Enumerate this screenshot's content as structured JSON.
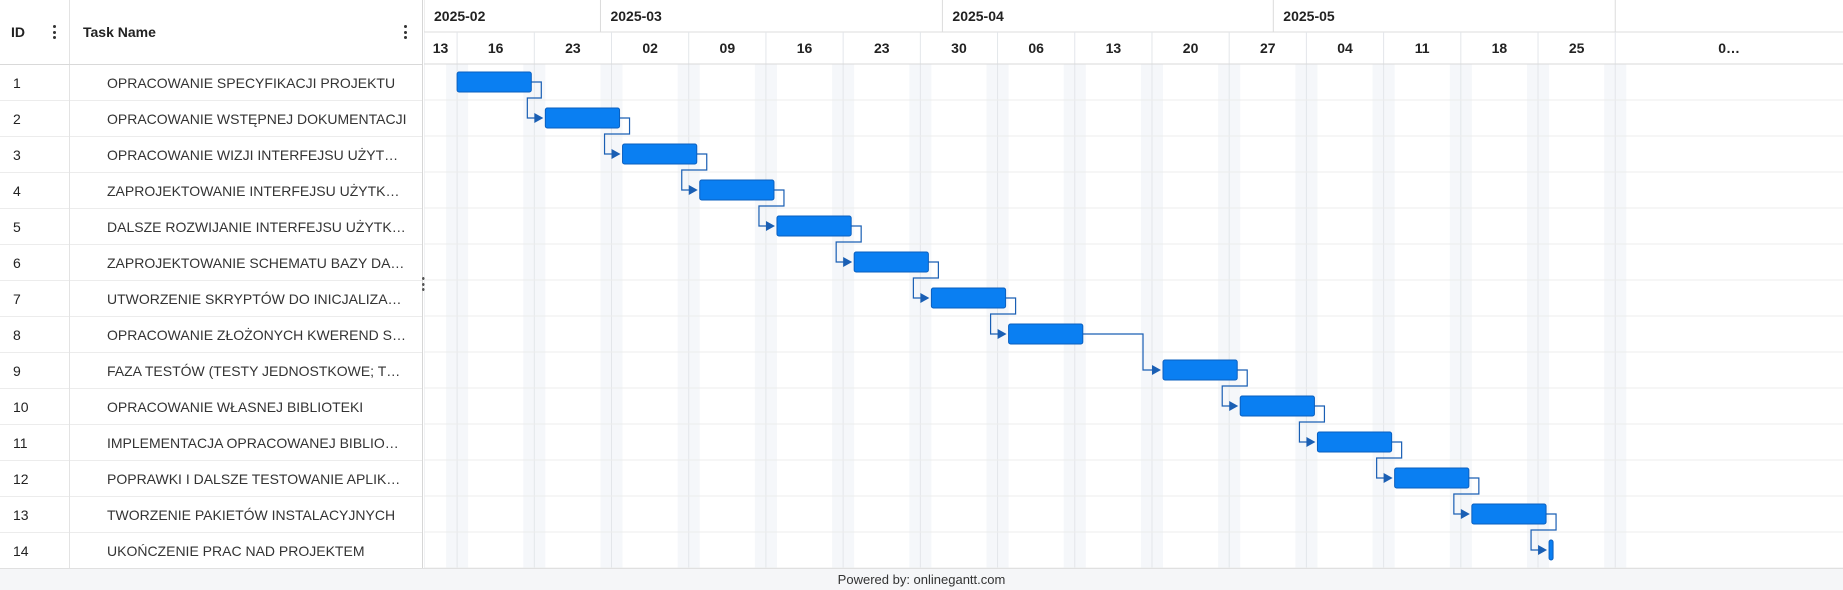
{
  "grid": {
    "columns": {
      "id": "ID",
      "name": "Task Name"
    }
  },
  "tasks": [
    {
      "id": "1",
      "name": "OPRACOWANIE SPECYFIKACJI PROJEKTU",
      "start": "2025-02-16",
      "end": "2025-02-22"
    },
    {
      "id": "2",
      "name": "OPRACOWANIE WSTĘPNEJ DOKUMENTACJI",
      "start": "2025-02-24",
      "end": "2025-03-02"
    },
    {
      "id": "3",
      "name": "OPRACOWANIE WIZJI INTERFEJSU UŻYTKOWNIKA",
      "start": "2025-03-03",
      "end": "2025-03-09"
    },
    {
      "id": "4",
      "name": "ZAPROJEKTOWANIE INTERFEJSU UŻYTKOWNIKA",
      "start": "2025-03-10",
      "end": "2025-03-16"
    },
    {
      "id": "5",
      "name": "DALSZE ROZWIJANIE INTERFEJSU UŻYTKOWNIKA",
      "start": "2025-03-17",
      "end": "2025-03-23"
    },
    {
      "id": "6",
      "name": "ZAPROJEKTOWANIE SCHEMATU BAZY DANYCH",
      "start": "2025-03-24",
      "end": "2025-03-30"
    },
    {
      "id": "7",
      "name": "UTWORZENIE SKRYPTÓW DO INICJALIZACJI",
      "start": "2025-03-31",
      "end": "2025-04-06"
    },
    {
      "id": "8",
      "name": "OPRACOWANIE ZŁOŻONYCH KWEREND SQL",
      "start": "2025-04-07",
      "end": "2025-04-13"
    },
    {
      "id": "9",
      "name": "FAZA TESTÓW (TESTY JEDNOSTKOWE; TESTY)",
      "start": "2025-04-21",
      "end": "2025-04-27"
    },
    {
      "id": "10",
      "name": "OPRACOWANIE WŁASNEJ BIBLIOTEKI",
      "start": "2025-04-28",
      "end": "2025-05-04"
    },
    {
      "id": "11",
      "name": "IMPLEMENTACJA OPRACOWANEJ BIBLIOTEKI",
      "start": "2025-05-05",
      "end": "2025-05-11"
    },
    {
      "id": "12",
      "name": "POPRAWKI I DALSZE TESTOWANIE APLIKACJI",
      "start": "2025-05-12",
      "end": "2025-05-18"
    },
    {
      "id": "13",
      "name": "TWORZENIE PAKIETÓW INSTALACYJNYCH",
      "start": "2025-05-19",
      "end": "2025-05-25"
    },
    {
      "id": "14",
      "name": "UKOŃCZENIE PRAC NAD PROJEKTEM",
      "start": "2025-05-26",
      "end": "2025-05-26",
      "milestone": true
    }
  ],
  "timeline": {
    "start": "2025-02-13",
    "end": "2025-06-02",
    "months": [
      "2025-02",
      "2025-03",
      "2025-04",
      "2025-05",
      ""
    ],
    "weeks": [
      "13",
      "16",
      "23",
      "02",
      "09",
      "16",
      "23",
      "30",
      "06",
      "13",
      "20",
      "27",
      "04",
      "11",
      "18",
      "25",
      "0…"
    ]
  },
  "colors": {
    "bar": "#0a7ff2",
    "bar_border": "#0a5fbf",
    "link": "#1a5fb4",
    "weekend": "#f5f7fa"
  },
  "footer": {
    "text": "Powered by: onlinegantt.com"
  }
}
